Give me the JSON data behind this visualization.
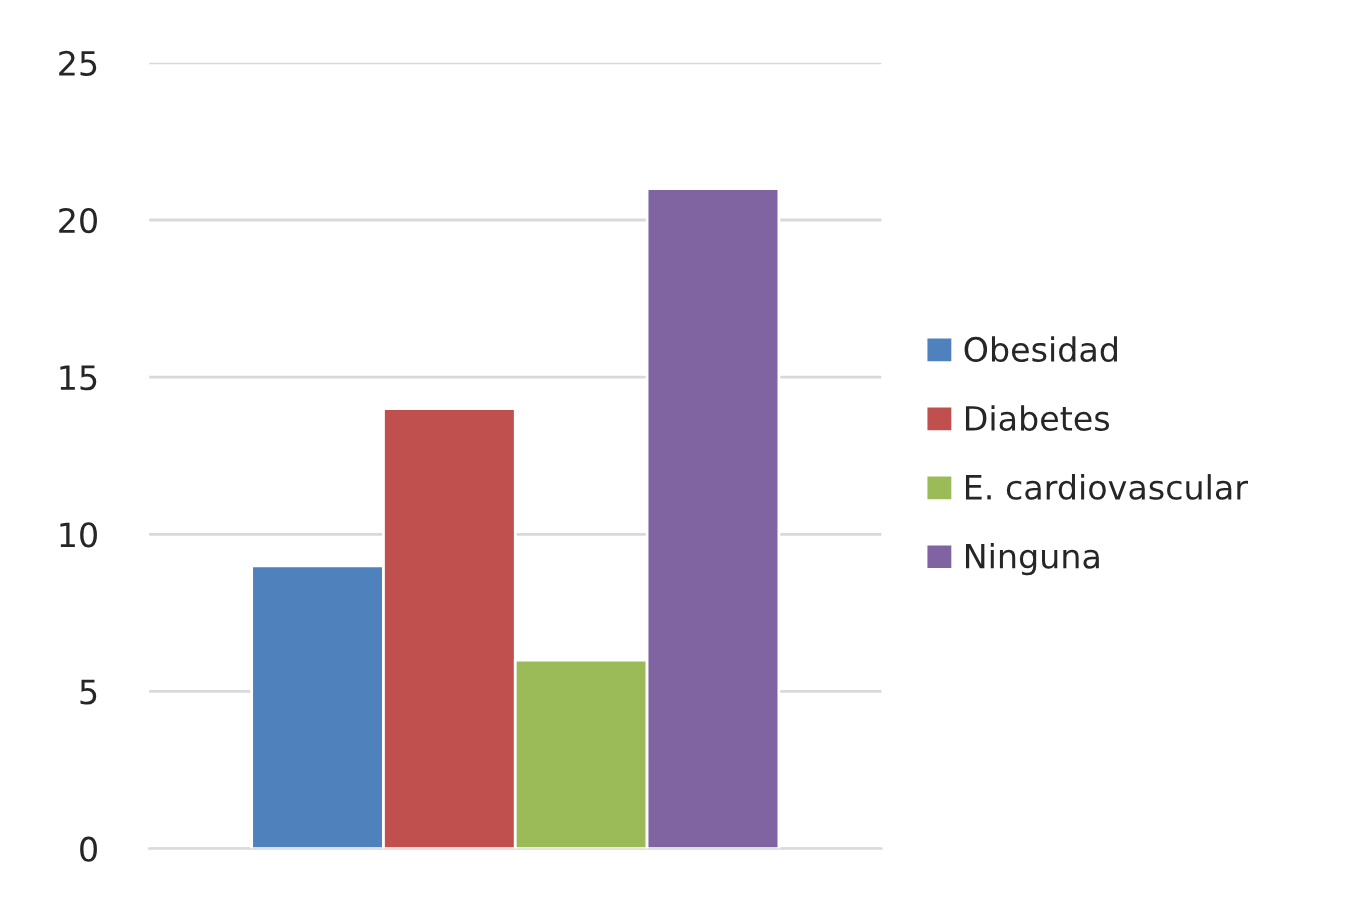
{
  "chart_data": {
    "type": "bar",
    "categories": [
      null
    ],
    "series": [
      {
        "name": "Obesidad",
        "color": "#4f81bd",
        "values": [
          9
        ]
      },
      {
        "name": "Diabetes",
        "color": "#c0504d",
        "values": [
          14
        ]
      },
      {
        "name": "E. cardiovascular",
        "color": "#9bbb59",
        "values": [
          6
        ]
      },
      {
        "name": "Ninguna",
        "color": "#8064a2",
        "values": [
          21
        ]
      }
    ],
    "ylim": [
      0,
      25
    ],
    "yticks": [
      0,
      5,
      10,
      15,
      20,
      25
    ],
    "grid": "y",
    "legend": "right"
  }
}
